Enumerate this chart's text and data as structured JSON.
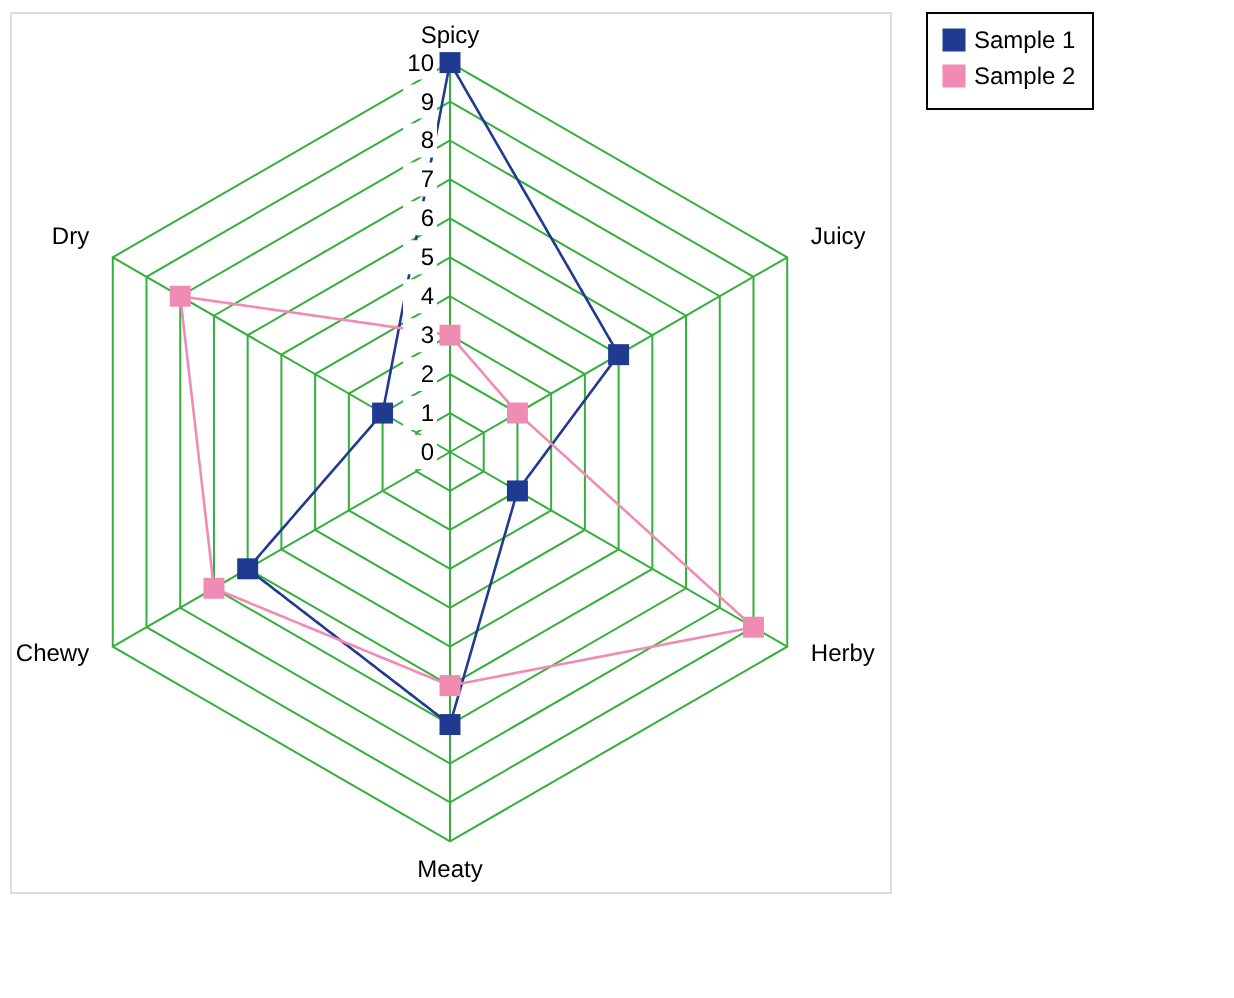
{
  "chart_data": {
    "type": "radar",
    "categories": [
      "Spicy",
      "Juicy",
      "Herby",
      "Meaty",
      "Chewy",
      "Dry"
    ],
    "series": [
      {
        "name": "Sample 1",
        "color": "#1f3a8f",
        "values": [
          10,
          5,
          2,
          7,
          6,
          2
        ]
      },
      {
        "name": "Sample 2",
        "color": "#f08cb4",
        "values": [
          3,
          2,
          9,
          6,
          7,
          8
        ]
      }
    ],
    "ylim": [
      0,
      10
    ],
    "yticks": [
      0,
      1,
      2,
      3,
      4,
      5,
      6,
      7,
      8,
      9,
      10
    ],
    "grid": true,
    "legend": "right",
    "marker": "square",
    "line_style": "solid"
  }
}
